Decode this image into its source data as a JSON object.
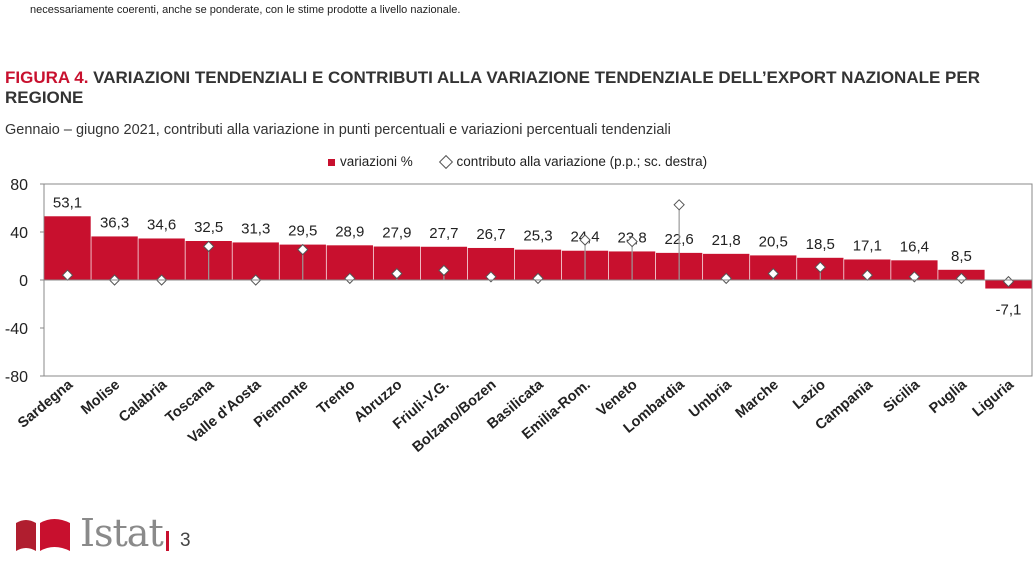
{
  "note": "necessariamente coerenti, anche se ponderate, con le stime prodotte a livello nazionale.",
  "figure": {
    "label": "FIGURA 4.",
    "title": "VARIAZIONI TENDENZIALI E CONTRIBUTI ALLA VARIAZIONE TENDENZIALE DELL’EXPORT NAZIONALE PER REGIONE",
    "subtitle": "Gennaio – giugno 2021, contributi alla variazione in punti percentuali e variazioni percentuali tendenziali"
  },
  "chart_data": {
    "type": "bar",
    "categories": [
      "Sardegna",
      "Molise",
      "Calabria",
      "Toscana",
      "Valle d'Aosta",
      "Piemonte",
      "Trento",
      "Abruzzo",
      "Friuli-V.G.",
      "Bolzano/Bozen",
      "Basilicata",
      "Emilia-Rom.",
      "Veneto",
      "Lombardia",
      "Umbria",
      "Marche",
      "Lazio",
      "Campania",
      "Sicilia",
      "Puglia",
      "Liguria"
    ],
    "series": [
      {
        "name": "variazioni %",
        "axis": "left",
        "values": [
          53.1,
          36.3,
          34.6,
          32.5,
          31.3,
          29.5,
          28.9,
          27.9,
          27.7,
          26.7,
          25.3,
          24.4,
          23.8,
          22.6,
          21.8,
          20.5,
          18.5,
          17.1,
          16.4,
          8.5,
          -7.1
        ],
        "labels": [
          "53,1",
          "36,3",
          "34,6",
          "32,5",
          "31,3",
          "29,5",
          "28,9",
          "27,9",
          "27,7",
          "26,7",
          "25,3",
          "24,4",
          "23,8",
          "22,6",
          "21,8",
          "20,5",
          "18,5",
          "17,1",
          "16,4",
          "8,5",
          "-7,1"
        ]
      },
      {
        "name": "contributo alla variazione (p.p.; sc. destra)",
        "axis": "right",
        "marker": "diamond",
        "values": [
          0.3,
          0.0,
          0.0,
          2.1,
          0.0,
          1.9,
          0.1,
          0.4,
          0.6,
          0.2,
          0.1,
          2.5,
          2.4,
          4.7,
          0.1,
          0.4,
          0.8,
          0.3,
          0.2,
          0.1,
          -0.1
        ]
      }
    ],
    "ylim": [
      -80,
      80
    ],
    "yticks": [
      "80",
      "40",
      "0",
      "-40",
      "-80"
    ],
    "y2lim": [
      -6,
      6
    ],
    "grid": false,
    "legend": "top"
  },
  "footer": {
    "brand": "Istat",
    "page": "3"
  },
  "colors": {
    "bar": "#c8102e",
    "axis": "#888888"
  }
}
